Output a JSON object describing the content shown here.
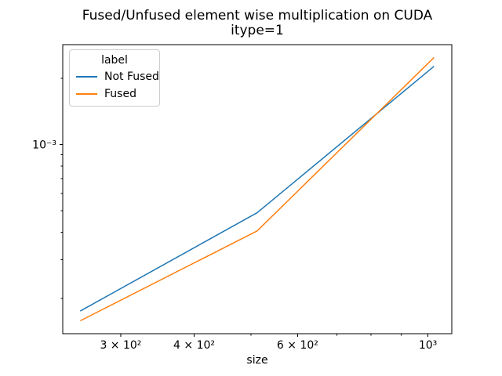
{
  "chart_data": {
    "type": "line",
    "title": "Fused/Unfused element wise multiplication on CUDA",
    "subtitle": "itype=1",
    "xlabel": "size",
    "ylabel": "",
    "x_scale": "log",
    "y_scale": "log",
    "grid": false,
    "x": [
      256,
      512,
      1024
    ],
    "series": [
      {
        "name": "Not Fused",
        "color": "#1f77b4",
        "values": [
          0.000175,
          0.00049,
          0.00227
        ]
      },
      {
        "name": "Fused",
        "color": "#ff7f0e",
        "values": [
          0.000158,
          0.000405,
          0.00249
        ]
      }
    ],
    "xlim": [
      239,
      1098
    ],
    "ylim": [
      0.000138,
      0.00285
    ],
    "x_major_ticks": [
      {
        "value": 300,
        "label": "3 × 10²"
      },
      {
        "value": 400,
        "label": "4 × 10²"
      },
      {
        "value": 600,
        "label": "6 × 10²"
      },
      {
        "value": 1000,
        "label": "10³"
      }
    ],
    "x_minor_ticks": [
      500,
      700,
      800,
      900
    ],
    "y_major_ticks": [
      {
        "value": 0.001,
        "label": "10⁻³"
      }
    ],
    "y_minor_ticks": [
      0.002,
      0.0009,
      0.0008,
      0.0007,
      0.0006,
      0.0005,
      0.0004,
      0.0003,
      0.0002
    ],
    "legend": {
      "title": "label",
      "position": "upper left"
    },
    "axis_color": "#000000",
    "background_color": "#ffffff"
  }
}
